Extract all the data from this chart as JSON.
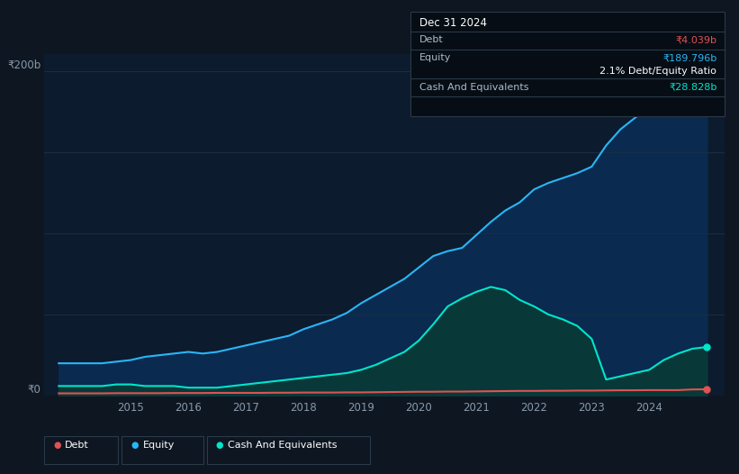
{
  "background_color": "#0e1621",
  "plot_bg_color": "#0d1b2e",
  "grid_color": "#1c2e42",
  "debt_color": "#e05252",
  "equity_color": "#29b6f6",
  "cash_color": "#00e5cc",
  "equity_fill_color": "#0a2a50",
  "cash_fill_color": "#083838",
  "x_years": [
    2013.75,
    2014.0,
    2014.25,
    2014.5,
    2014.75,
    2015.0,
    2015.25,
    2015.5,
    2015.75,
    2016.0,
    2016.25,
    2016.5,
    2016.75,
    2017.0,
    2017.25,
    2017.5,
    2017.75,
    2018.0,
    2018.25,
    2018.5,
    2018.75,
    2019.0,
    2019.25,
    2019.5,
    2019.75,
    2020.0,
    2020.25,
    2020.5,
    2020.75,
    2021.0,
    2021.25,
    2021.5,
    2021.75,
    2022.0,
    2022.25,
    2022.5,
    2022.75,
    2023.0,
    2023.25,
    2023.5,
    2023.75,
    2024.0,
    2024.25,
    2024.5,
    2024.75,
    2025.0
  ],
  "equity": [
    20,
    20,
    20,
    20,
    21,
    22,
    24,
    25,
    26,
    27,
    26,
    27,
    29,
    31,
    33,
    35,
    37,
    41,
    44,
    47,
    51,
    57,
    62,
    67,
    72,
    79,
    86,
    89,
    91,
    99,
    107,
    114,
    119,
    127,
    131,
    134,
    137,
    141,
    154,
    164,
    171,
    177,
    184,
    188,
    190,
    191
  ],
  "debt": [
    1.5,
    1.5,
    1.5,
    1.5,
    1.6,
    1.6,
    1.6,
    1.6,
    1.7,
    1.7,
    1.7,
    1.8,
    1.8,
    1.8,
    1.8,
    1.9,
    1.9,
    2.0,
    2.0,
    2.0,
    2.1,
    2.1,
    2.2,
    2.3,
    2.4,
    2.5,
    2.5,
    2.6,
    2.6,
    2.7,
    2.8,
    2.9,
    3.0,
    3.0,
    3.1,
    3.1,
    3.2,
    3.2,
    3.3,
    3.4,
    3.4,
    3.5,
    3.5,
    3.5,
    3.9,
    4.0
  ],
  "cash": [
    6,
    6,
    6,
    6,
    7,
    7,
    6,
    6,
    6,
    5,
    5,
    5,
    6,
    7,
    8,
    9,
    10,
    11,
    12,
    13,
    14,
    16,
    19,
    23,
    27,
    34,
    44,
    55,
    60,
    64,
    67,
    65,
    59,
    55,
    50,
    47,
    43,
    35,
    10,
    12,
    14,
    16,
    22,
    26,
    29,
    30
  ],
  "xticks": [
    2015,
    2016,
    2017,
    2018,
    2019,
    2020,
    2021,
    2022,
    2023,
    2024
  ],
  "xlim": [
    2013.5,
    2025.3
  ],
  "ylim": [
    0,
    210
  ],
  "ytick_vals": [
    0,
    50,
    100,
    150,
    200
  ],
  "ylabel_200": "₹200b",
  "ylabel_0": "₹0",
  "tooltip_date": "Dec 31 2024",
  "tooltip_debt_label": "Debt",
  "tooltip_debt_value": "₹4.039b",
  "tooltip_equity_label": "Equity",
  "tooltip_equity_value": "₹189.796b",
  "tooltip_ratio": "2.1% Debt/Equity Ratio",
  "tooltip_cash_label": "Cash And Equivalents",
  "tooltip_cash_value": "₹28.828b",
  "legend_labels": [
    "Debt",
    "Equity",
    "Cash And Equivalents"
  ],
  "legend_bg": "#0e1621",
  "legend_border": "#2a3a4a",
  "tooltip_bg": "#060d14",
  "tooltip_border": "#2a3a4a"
}
